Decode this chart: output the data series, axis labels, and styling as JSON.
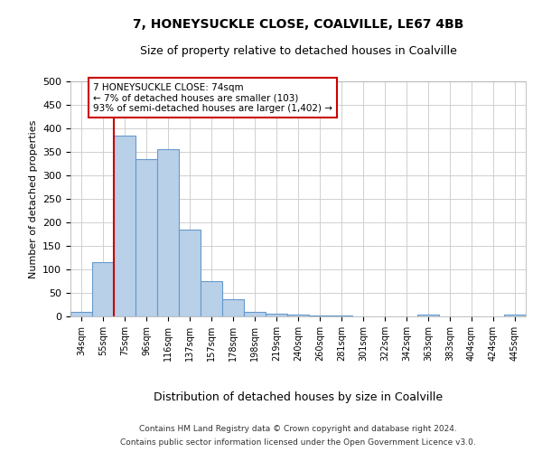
{
  "title1": "7, HONEYSUCKLE CLOSE, COALVILLE, LE67 4BB",
  "title2": "Size of property relative to detached houses in Coalville",
  "xlabel": "Distribution of detached houses by size in Coalville",
  "ylabel": "Number of detached properties",
  "categories": [
    "34sqm",
    "55sqm",
    "75sqm",
    "96sqm",
    "116sqm",
    "137sqm",
    "157sqm",
    "178sqm",
    "198sqm",
    "219sqm",
    "240sqm",
    "260sqm",
    "281sqm",
    "301sqm",
    "322sqm",
    "342sqm",
    "363sqm",
    "383sqm",
    "404sqm",
    "424sqm",
    "445sqm"
  ],
  "values": [
    10,
    115,
    385,
    335,
    355,
    185,
    75,
    37,
    10,
    6,
    4,
    1,
    1,
    0,
    0,
    0,
    4,
    0,
    0,
    0,
    3
  ],
  "bar_color": "#b8d0e8",
  "bar_edge_color": "#6699cc",
  "vline_color": "#cc0000",
  "annotation_text": "7 HONEYSUCKLE CLOSE: 74sqm\n← 7% of detached houses are smaller (103)\n93% of semi-detached houses are larger (1,402) →",
  "annotation_box_color": "#ffffff",
  "annotation_box_edge_color": "#cc0000",
  "ylim": [
    0,
    500
  ],
  "yticks": [
    0,
    50,
    100,
    150,
    200,
    250,
    300,
    350,
    400,
    450,
    500
  ],
  "footnote1": "Contains HM Land Registry data © Crown copyright and database right 2024.",
  "footnote2": "Contains public sector information licensed under the Open Government Licence v3.0.",
  "background_color": "#ffffff",
  "grid_color": "#d0d0d0"
}
